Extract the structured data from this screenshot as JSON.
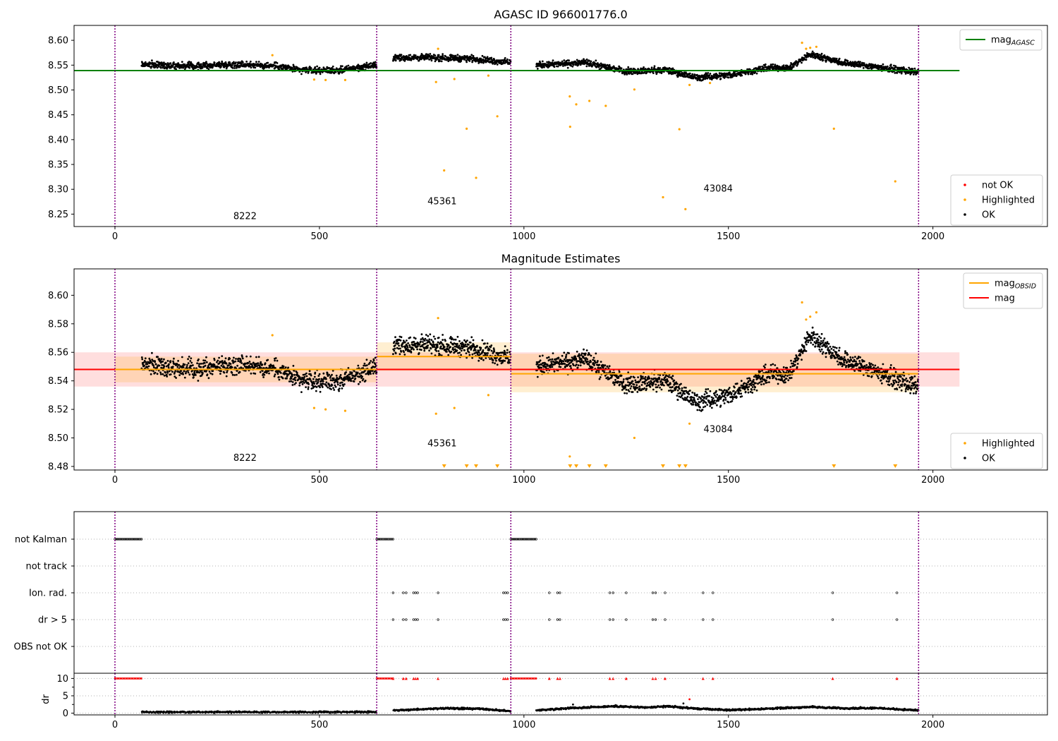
{
  "chart_data": [
    {
      "type": "scatter",
      "title": "AGASC ID 966001776.0",
      "xlim": [
        -100,
        2280
      ],
      "ylim": [
        8.225,
        8.63
      ],
      "xticks": [
        0,
        500,
        1000,
        1500,
        2000
      ],
      "yticks": [
        8.25,
        8.3,
        8.35,
        8.4,
        8.45,
        8.5,
        8.55,
        8.6
      ],
      "ytick_labels": [
        "8.25",
        "8.30",
        "8.35",
        "8.40",
        "8.45",
        "8.50",
        "8.55",
        "8.60"
      ],
      "obsid_boundaries": [
        0,
        640,
        968,
        1965
      ],
      "annotations": [
        {
          "text": "8222",
          "x": 318,
          "y": 8.24
        },
        {
          "text": "45361",
          "x": 800,
          "y": 8.27
        },
        {
          "text": "43084",
          "x": 1475,
          "y": 8.295
        }
      ],
      "lines": [
        {
          "name": "mag_AGASC",
          "color": "#008000",
          "x": [
            -100,
            2065
          ],
          "y": [
            8.539,
            8.539
          ]
        }
      ],
      "ok_trend": [
        {
          "x0": 65,
          "x1": 640,
          "points": [
            [
              65,
              8.552
            ],
            [
              200,
              8.548
            ],
            [
              300,
              8.552
            ],
            [
              400,
              8.548
            ],
            [
              450,
              8.54
            ],
            [
              550,
              8.54
            ],
            [
              640,
              8.55
            ]
          ]
        },
        {
          "x0": 680,
          "x1": 968,
          "points": [
            [
              680,
              8.565
            ],
            [
              800,
              8.565
            ],
            [
              880,
              8.563
            ],
            [
              968,
              8.555
            ]
          ]
        },
        {
          "x0": 1030,
          "x1": 1965,
          "points": [
            [
              1030,
              8.55
            ],
            [
              1150,
              8.555
            ],
            [
              1250,
              8.538
            ],
            [
              1350,
              8.54
            ],
            [
              1420,
              8.525
            ],
            [
              1500,
              8.53
            ],
            [
              1600,
              8.545
            ],
            [
              1650,
              8.545
            ],
            [
              1700,
              8.572
            ],
            [
              1780,
              8.555
            ],
            [
              1850,
              8.548
            ],
            [
              1965,
              8.535
            ]
          ]
        }
      ],
      "highlighted_points": [
        [
          385,
          8.57
        ],
        [
          487,
          8.521
        ],
        [
          515,
          8.52
        ],
        [
          563,
          8.52
        ],
        [
          785,
          8.516
        ],
        [
          790,
          8.583
        ],
        [
          805,
          8.338
        ],
        [
          830,
          8.522
        ],
        [
          860,
          8.422
        ],
        [
          883,
          8.323
        ],
        [
          913,
          8.529
        ],
        [
          935,
          8.447
        ],
        [
          1112,
          8.487
        ],
        [
          1113,
          8.426
        ],
        [
          1128,
          8.471
        ],
        [
          1160,
          8.478
        ],
        [
          1200,
          8.468
        ],
        [
          1270,
          8.501
        ],
        [
          1340,
          8.284
        ],
        [
          1380,
          8.421
        ],
        [
          1395,
          8.26
        ],
        [
          1405,
          8.51
        ],
        [
          1455,
          8.514
        ],
        [
          1680,
          8.595
        ],
        [
          1690,
          8.583
        ],
        [
          1700,
          8.585
        ],
        [
          1715,
          8.587
        ],
        [
          1758,
          8.422
        ],
        [
          1908,
          8.316
        ]
      ],
      "legend_upper": [
        {
          "label": "mag",
          "sub": "AGASC",
          "color": "#008000"
        }
      ],
      "legend_lower": [
        {
          "label": "not OK",
          "color": "#ff0000"
        },
        {
          "label": "Highlighted",
          "color": "#ffa500"
        },
        {
          "label": "OK",
          "color": "#000000"
        }
      ]
    },
    {
      "type": "scatter",
      "title": "Magnitude Estimates",
      "xlim": [
        -100,
        2280
      ],
      "ylim": [
        8.4775,
        8.6185
      ],
      "xticks": [
        0,
        500,
        1000,
        1500,
        2000
      ],
      "yticks": [
        8.48,
        8.5,
        8.52,
        8.54,
        8.56,
        8.58,
        8.6
      ],
      "ytick_labels": [
        "8.48",
        "8.50",
        "8.52",
        "8.54",
        "8.56",
        "8.58",
        "8.60"
      ],
      "obsid_boundaries": [
        0,
        640,
        968,
        1965
      ],
      "annotations": [
        {
          "text": "8222",
          "x": 318,
          "y": 8.484
        },
        {
          "text": "45361",
          "x": 800,
          "y": 8.494
        },
        {
          "text": "43084",
          "x": 1475,
          "y": 8.504
        }
      ],
      "mag": {
        "value": 8.548,
        "band": [
          8.536,
          8.56
        ],
        "x": [
          -100,
          2065
        ],
        "color": "#ff0000"
      },
      "mag_obsid": [
        {
          "x0": 0,
          "x1": 640,
          "value": 8.548,
          "band": [
            8.539,
            8.557
          ]
        },
        {
          "x0": 640,
          "x1": 968,
          "value": 8.557,
          "band": [
            8.547,
            8.567
          ]
        },
        {
          "x0": 968,
          "x1": 1965,
          "value": 8.545,
          "band": [
            8.532,
            8.559
          ]
        }
      ],
      "ok_trend": [
        {
          "x0": 65,
          "x1": 640,
          "points": [
            [
              65,
              8.552
            ],
            [
              200,
              8.548
            ],
            [
              300,
              8.552
            ],
            [
              400,
              8.548
            ],
            [
              450,
              8.54
            ],
            [
              550,
              8.54
            ],
            [
              640,
              8.55
            ]
          ]
        },
        {
          "x0": 680,
          "x1": 968,
          "points": [
            [
              680,
              8.565
            ],
            [
              800,
              8.565
            ],
            [
              880,
              8.563
            ],
            [
              968,
              8.555
            ]
          ]
        },
        {
          "x0": 1030,
          "x1": 1965,
          "points": [
            [
              1030,
              8.55
            ],
            [
              1150,
              8.555
            ],
            [
              1250,
              8.538
            ],
            [
              1350,
              8.54
            ],
            [
              1420,
              8.525
            ],
            [
              1500,
              8.53
            ],
            [
              1600,
              8.545
            ],
            [
              1650,
              8.545
            ],
            [
              1700,
              8.572
            ],
            [
              1780,
              8.555
            ],
            [
              1850,
              8.548
            ],
            [
              1965,
              8.535
            ]
          ]
        }
      ],
      "highlighted_points": [
        [
          385,
          8.572
        ],
        [
          487,
          8.521
        ],
        [
          515,
          8.52
        ],
        [
          563,
          8.519
        ],
        [
          785,
          8.517
        ],
        [
          790,
          8.584
        ],
        [
          830,
          8.521
        ],
        [
          913,
          8.53
        ],
        [
          1112,
          8.487
        ],
        [
          1270,
          8.5
        ],
        [
          1405,
          8.51
        ],
        [
          1680,
          8.595
        ],
        [
          1690,
          8.583
        ],
        [
          1700,
          8.585
        ],
        [
          1715,
          8.588
        ]
      ],
      "off_scale_points_x": [
        805,
        860,
        883,
        935,
        1113,
        1128,
        1160,
        1200,
        1340,
        1380,
        1395,
        1758,
        1908
      ],
      "legend_upper": [
        {
          "label": "mag",
          "sub": "OBSID",
          "color": "#ffa500"
        },
        {
          "label": "mag",
          "sub": "",
          "color": "#ff0000"
        }
      ],
      "legend_lower": [
        {
          "label": "Highlighted",
          "color": "#ffa500"
        },
        {
          "label": "OK",
          "color": "#000000"
        }
      ]
    },
    {
      "type": "scatter",
      "title": "",
      "xlim": [
        -100,
        2280
      ],
      "xticks": [
        0,
        500,
        1000,
        1500,
        2000
      ],
      "obsid_boundaries": [
        0,
        640,
        968,
        1965
      ],
      "flag_rows": [
        "not Kalman",
        "not track",
        "Ion. rad.",
        "dr > 5",
        "OBS not OK"
      ],
      "flag_segments": [
        {
          "row": "not Kalman",
          "x0": 0,
          "x1": 65
        },
        {
          "row": "not Kalman",
          "x0": 640,
          "x1": 680
        },
        {
          "row": "not Kalman",
          "x0": 968,
          "x1": 1030
        }
      ],
      "flag_points_x": [
        680,
        705,
        712,
        730,
        735,
        740,
        790,
        950,
        955,
        960,
        1062,
        1082,
        1088,
        1210,
        1218,
        1250,
        1315,
        1322,
        1345,
        1438,
        1462,
        1755,
        1912
      ],
      "flag_point_rows": [
        "Ion. rad.",
        "dr > 5"
      ],
      "dr_ylim": [
        -0.5,
        11.5
      ],
      "dr_yticks": [
        0,
        5,
        10
      ],
      "dr_ytick_labels": [
        "0",
        "5",
        "10"
      ],
      "dr_ylabel": "dr",
      "dr_trend": [
        {
          "x0": 65,
          "x1": 640,
          "points": [
            [
              65,
              0.3
            ],
            [
              640,
              0.3
            ]
          ]
        },
        {
          "x0": 680,
          "x1": 968,
          "points": [
            [
              680,
              0.8
            ],
            [
              800,
              1.4
            ],
            [
              880,
              1.3
            ],
            [
              968,
              0.6
            ]
          ]
        },
        {
          "x0": 1030,
          "x1": 1965,
          "points": [
            [
              1030,
              0.8
            ],
            [
              1100,
              1.4
            ],
            [
              1220,
              2.0
            ],
            [
              1300,
              1.6
            ],
            [
              1350,
              2.0
            ],
            [
              1420,
              1.3
            ],
            [
              1500,
              0.9
            ],
            [
              1600,
              1.3
            ],
            [
              1700,
              1.8
            ],
            [
              1780,
              1.4
            ],
            [
              1860,
              1.5
            ],
            [
              1965,
              0.8
            ]
          ]
        }
      ],
      "dr_not_ok_x": [
        0,
        65,
        640,
        680,
        968,
        1030
      ],
      "dr_outliers": [
        [
          1405,
          4.0
        ],
        [
          1390,
          2.8
        ],
        [
          1120,
          2.5
        ]
      ],
      "colors": {
        "ok": "#000000",
        "not_ok": "#ff0000",
        "highlighted": "#ffa500"
      }
    }
  ]
}
